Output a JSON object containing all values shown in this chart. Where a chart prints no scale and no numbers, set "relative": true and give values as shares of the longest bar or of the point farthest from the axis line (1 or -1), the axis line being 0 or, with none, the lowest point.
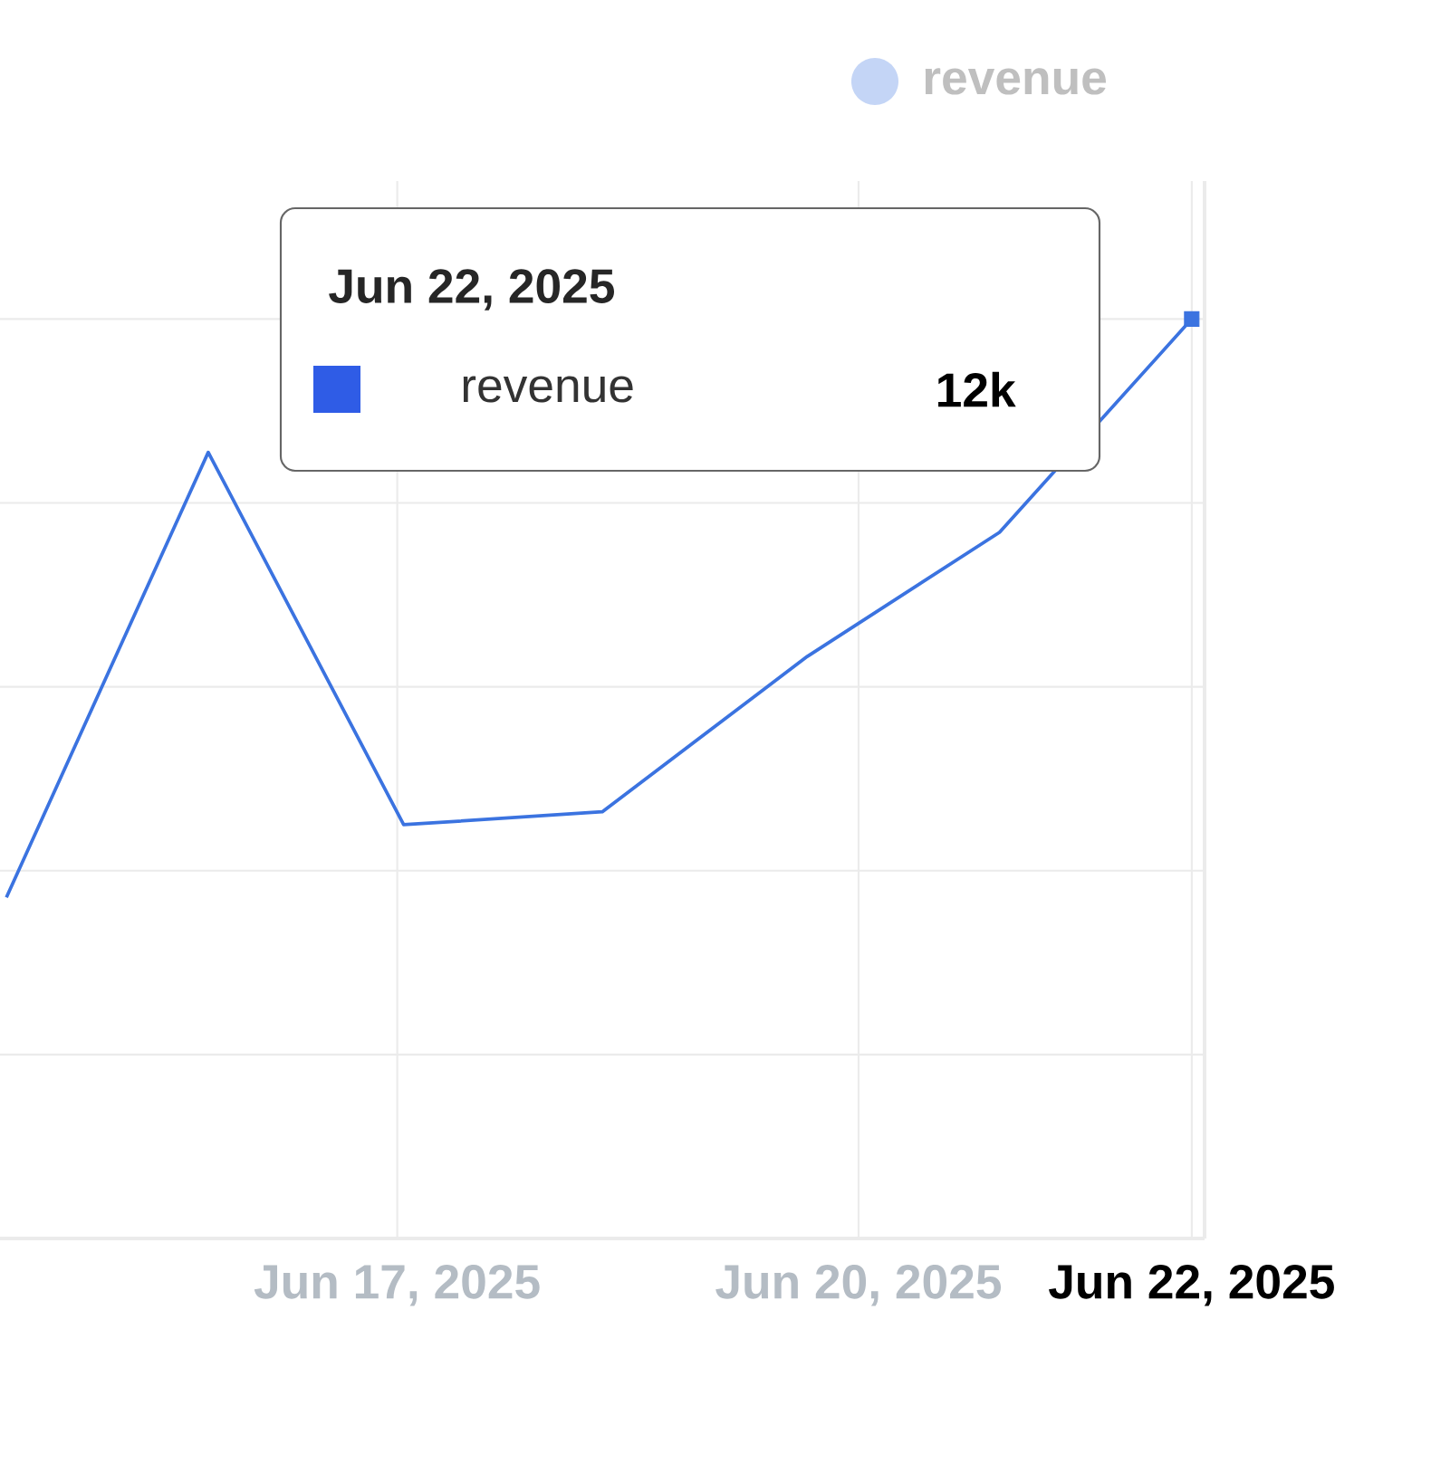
{
  "chart_data": {
    "type": "line",
    "relative": true,
    "x": [
      "2025-06-14T11:00",
      "2025-06-15T18:30",
      "2025-06-17T01:00",
      "2025-06-18T08:00",
      "2025-06-19T16:00",
      "2025-06-20T22:00",
      "2025-06-22T04:00"
    ],
    "series": [
      {
        "name": "revenue",
        "color": "#3b73e0",
        "values": [
          0.371,
          0.855,
          0.45,
          0.464,
          0.633,
          0.768,
          1
        ]
      }
    ],
    "xlim": [
      "2025-06-14T10:00",
      "2025-06-22T06:00"
    ],
    "xticks": [
      {
        "value": "2025-06-17",
        "label": "Jun 17, 2025"
      },
      {
        "value": "2025-06-20",
        "label": "Jun 20, 2025"
      },
      {
        "value": "2025-06-22T04:00",
        "label": "Jun 22, 2025"
      }
    ],
    "annotations": [
      "Jun 22, 2025",
      "12k"
    ],
    "grid": true,
    "legend": "top right",
    "marker": "none",
    "line_style": "solid"
  }
}
